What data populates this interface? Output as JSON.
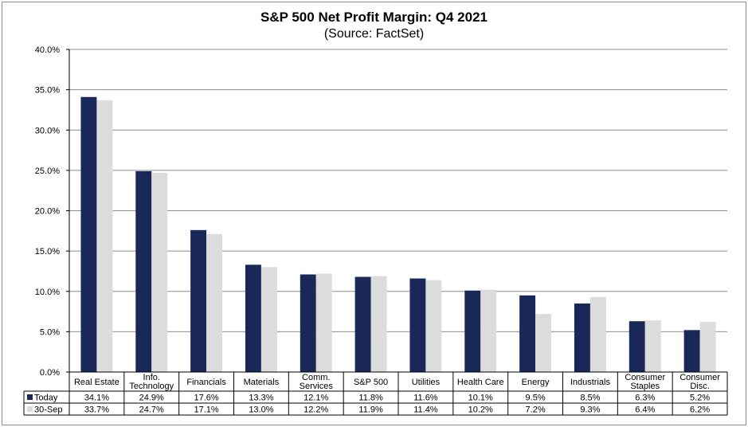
{
  "chart_data": {
    "type": "bar",
    "title": "S&P 500 Net Profit Margin: Q4 2021",
    "subtitle": "(Source: FactSet)",
    "xlabel": "",
    "ylabel": "",
    "ylim": [
      0,
      40
    ],
    "yticks": [
      "0.0%",
      "5.0%",
      "10.0%",
      "15.0%",
      "20.0%",
      "25.0%",
      "30.0%",
      "35.0%",
      "40.0%"
    ],
    "grid": true,
    "legend": "table-left",
    "categories": [
      [
        "Real Estate"
      ],
      [
        "Info.",
        "Technology"
      ],
      [
        "Financials"
      ],
      [
        "Materials"
      ],
      [
        "Comm.",
        "Services"
      ],
      [
        "S&P 500"
      ],
      [
        "Utilities"
      ],
      [
        "Health Care"
      ],
      [
        "Energy"
      ],
      [
        "Industrials"
      ],
      [
        "Consumer",
        "Staples"
      ],
      [
        "Consumer",
        "Disc."
      ]
    ],
    "series": [
      {
        "name": "Today",
        "color": "#1a2859",
        "values": [
          34.1,
          24.9,
          17.6,
          13.3,
          12.1,
          11.8,
          11.6,
          10.1,
          9.5,
          8.5,
          6.3,
          5.2
        ],
        "labels": [
          "34.1%",
          "24.9%",
          "17.6%",
          "13.3%",
          "12.1%",
          "11.8%",
          "11.6%",
          "10.1%",
          "9.5%",
          "8.5%",
          "6.3%",
          "5.2%"
        ]
      },
      {
        "name": "30-Sep",
        "color": "#dcdcdc",
        "values": [
          33.7,
          24.7,
          17.1,
          13.0,
          12.2,
          11.9,
          11.4,
          10.2,
          7.2,
          9.3,
          6.4,
          6.2
        ],
        "labels": [
          "33.7%",
          "24.7%",
          "17.1%",
          "13.0%",
          "12.2%",
          "11.9%",
          "11.4%",
          "10.2%",
          "7.2%",
          "9.3%",
          "6.4%",
          "6.2%"
        ]
      }
    ]
  }
}
